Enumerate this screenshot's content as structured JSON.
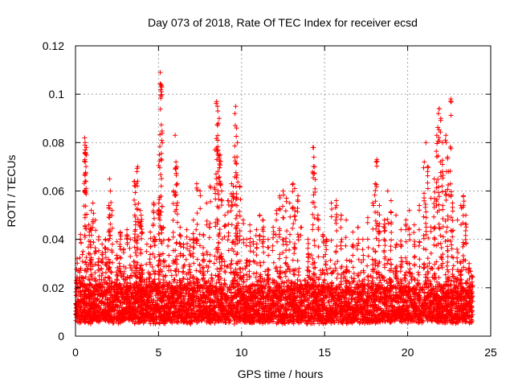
{
  "chart_data": {
    "type": "scatter",
    "title": "Day 073 of 2018, Rate Of TEC Index for receiver ecsd",
    "xlabel": "GPS time / hours",
    "ylabel": "ROTI / TECUs",
    "xlim": [
      0,
      25
    ],
    "ylim": [
      0,
      0.12
    ],
    "x_ticks": [
      0,
      5,
      10,
      15,
      20,
      25
    ],
    "y_ticks": [
      0,
      0.02,
      0.04,
      0.06,
      0.08,
      0.1,
      0.12
    ],
    "x_tick_labels": [
      "0",
      "5",
      "10",
      "15",
      "20",
      "25"
    ],
    "y_tick_labels": [
      "0",
      "0.02",
      "0.04",
      "0.06",
      "0.08",
      "0.1",
      "0.12"
    ],
    "grid": true,
    "marker": "plus",
    "marker_color": "#ff0000",
    "baseline_range": [
      0.005,
      0.02
    ],
    "series": [
      {
        "points": [
          [
            0.1,
            0.032
          ],
          [
            0.3,
            0.042
          ],
          [
            0.45,
            0.035
          ],
          [
            0.55,
            0.082
          ],
          [
            0.58,
            0.08
          ],
          [
            0.6,
            0.076
          ],
          [
            0.65,
            0.078
          ],
          [
            0.8,
            0.046
          ],
          [
            0.9,
            0.044
          ],
          [
            0.95,
            0.052
          ],
          [
            1.05,
            0.055
          ],
          [
            1.2,
            0.048
          ],
          [
            1.4,
            0.041
          ],
          [
            1.6,
            0.038
          ],
          [
            1.8,
            0.04
          ],
          [
            2.0,
            0.054
          ],
          [
            2.05,
            0.065
          ],
          [
            2.1,
            0.06
          ],
          [
            2.2,
            0.052
          ],
          [
            2.5,
            0.039
          ],
          [
            2.7,
            0.043
          ],
          [
            2.9,
            0.036
          ],
          [
            3.1,
            0.044
          ],
          [
            3.3,
            0.04
          ],
          [
            3.55,
            0.064
          ],
          [
            3.6,
            0.062
          ],
          [
            3.9,
            0.052
          ],
          [
            3.95,
            0.05
          ],
          [
            3.7,
            0.068
          ],
          [
            3.75,
            0.07
          ],
          [
            4.0,
            0.043
          ],
          [
            4.3,
            0.038
          ],
          [
            4.5,
            0.043
          ],
          [
            4.7,
            0.055
          ],
          [
            4.8,
            0.04
          ],
          [
            5.0,
            0.052
          ],
          [
            5.05,
            0.075
          ],
          [
            5.1,
            0.109
          ],
          [
            5.15,
            0.104
          ],
          [
            5.2,
            0.103
          ],
          [
            5.3,
            0.045
          ],
          [
            5.6,
            0.04
          ],
          [
            5.9,
            0.06
          ],
          [
            6.0,
            0.083
          ],
          [
            6.05,
            0.072
          ],
          [
            6.1,
            0.07
          ],
          [
            6.3,
            0.045
          ],
          [
            6.5,
            0.038
          ],
          [
            6.7,
            0.044
          ],
          [
            6.9,
            0.04
          ],
          [
            7.1,
            0.048
          ],
          [
            7.3,
            0.063
          ],
          [
            7.5,
            0.06
          ],
          [
            7.7,
            0.042
          ],
          [
            7.9,
            0.055
          ],
          [
            8.1,
            0.062
          ],
          [
            8.4,
            0.077
          ],
          [
            8.5,
            0.097
          ],
          [
            8.55,
            0.095
          ],
          [
            8.6,
            0.088
          ],
          [
            8.65,
            0.09
          ],
          [
            8.7,
            0.075
          ],
          [
            8.8,
            0.06
          ],
          [
            9.0,
            0.05
          ],
          [
            9.2,
            0.056
          ],
          [
            9.4,
            0.063
          ],
          [
            9.5,
            0.062
          ],
          [
            9.6,
            0.092
          ],
          [
            9.65,
            0.095
          ],
          [
            9.7,
            0.086
          ],
          [
            9.75,
            0.08
          ],
          [
            9.9,
            0.062
          ],
          [
            10.1,
            0.048
          ],
          [
            10.3,
            0.04
          ],
          [
            10.5,
            0.046
          ],
          [
            10.7,
            0.039
          ],
          [
            10.9,
            0.044
          ],
          [
            11.1,
            0.05
          ],
          [
            11.3,
            0.048
          ],
          [
            11.6,
            0.04
          ],
          [
            11.9,
            0.045
          ],
          [
            12.1,
            0.052
          ],
          [
            12.3,
            0.058
          ],
          [
            12.5,
            0.06
          ],
          [
            12.7,
            0.057
          ],
          [
            12.9,
            0.055
          ],
          [
            13.1,
            0.063
          ],
          [
            13.2,
            0.061
          ],
          [
            13.4,
            0.058
          ],
          [
            13.6,
            0.045
          ],
          [
            14.0,
            0.04
          ],
          [
            14.3,
            0.078
          ],
          [
            14.35,
            0.074
          ],
          [
            14.4,
            0.07
          ],
          [
            14.6,
            0.05
          ],
          [
            14.9,
            0.042
          ],
          [
            15.1,
            0.04
          ],
          [
            15.4,
            0.055
          ],
          [
            15.7,
            0.056
          ],
          [
            16.0,
            0.05
          ],
          [
            16.3,
            0.048
          ],
          [
            16.7,
            0.043
          ],
          [
            17.0,
            0.045
          ],
          [
            17.3,
            0.04
          ],
          [
            17.6,
            0.049
          ],
          [
            17.9,
            0.055
          ],
          [
            18.05,
            0.063
          ],
          [
            18.1,
            0.072
          ],
          [
            18.15,
            0.073
          ],
          [
            18.3,
            0.054
          ],
          [
            18.6,
            0.048
          ],
          [
            18.8,
            0.06
          ],
          [
            19.0,
            0.056
          ],
          [
            19.3,
            0.05
          ],
          [
            19.6,
            0.044
          ],
          [
            19.9,
            0.048
          ],
          [
            20.1,
            0.052
          ],
          [
            20.4,
            0.046
          ],
          [
            20.7,
            0.054
          ],
          [
            21.0,
            0.072
          ],
          [
            21.1,
            0.08
          ],
          [
            21.2,
            0.07
          ],
          [
            21.4,
            0.057
          ],
          [
            21.6,
            0.065
          ],
          [
            21.75,
            0.083
          ],
          [
            21.85,
            0.092
          ],
          [
            21.9,
            0.094
          ],
          [
            22.0,
            0.09
          ],
          [
            22.1,
            0.08
          ],
          [
            22.3,
            0.083
          ],
          [
            22.4,
            0.074
          ],
          [
            22.45,
            0.068
          ],
          [
            22.6,
            0.098
          ],
          [
            22.7,
            0.055
          ],
          [
            23.0,
            0.048
          ],
          [
            23.2,
            0.054
          ],
          [
            23.35,
            0.058
          ],
          [
            23.5,
            0.05
          ],
          [
            23.7,
            0.03
          ],
          [
            23.85,
            0.025
          ]
        ]
      }
    ]
  }
}
